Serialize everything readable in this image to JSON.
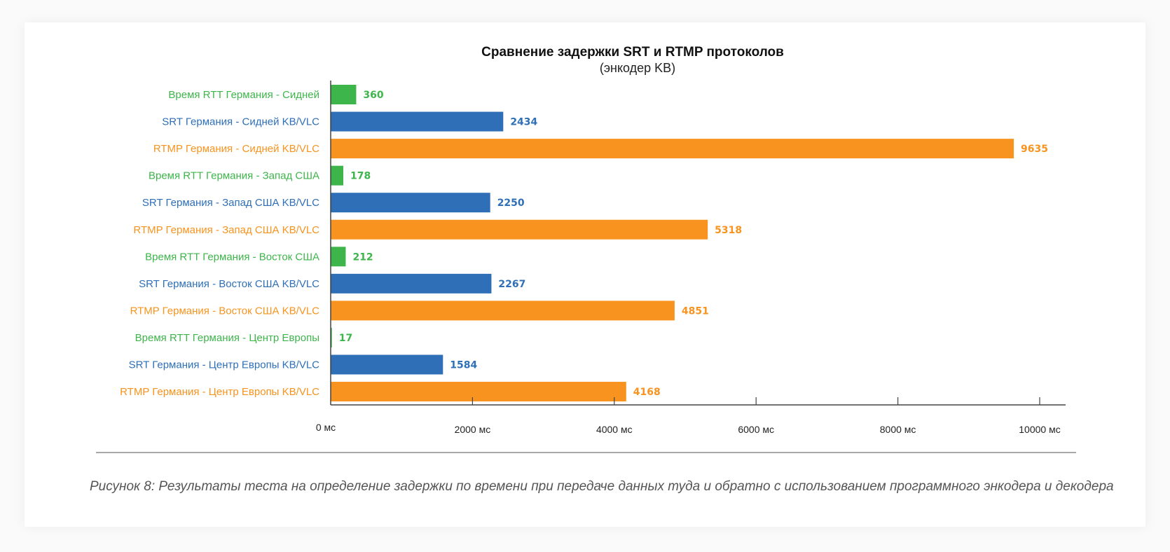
{
  "chart_data": {
    "type": "bar",
    "orientation": "horizontal",
    "title": "Сравнение задержки SRT и RTMP протоколов",
    "subtitle": "(энкодер KB)",
    "xlabel": "",
    "ylabel": "",
    "xlim": [
      0,
      10000
    ],
    "x_ticks": [
      0,
      2000,
      4000,
      6000,
      8000,
      10000
    ],
    "x_tick_labels": [
      "0 мс",
      "2000 мс",
      "4000 мс",
      "6000 мс",
      "8000 мс",
      "10000 мс"
    ],
    "grid": false,
    "legend": "none",
    "colors": {
      "rtt": "#3db54a",
      "srt": "#2e6fb7",
      "rtmp": "#f7931e"
    },
    "categories": [
      "Время RTT Германия - Сидней",
      "SRT Германия - Сидней KB/VLC",
      "RTMP Германия - Сидней KB/VLC",
      "Время RTT Германия - Запад США",
      "SRT Германия - Запад США KB/VLC",
      "RTMP Германия - Запад США KB/VLC",
      "Время RTT Германия - Восток США",
      "SRT Германия - Восток США KB/VLC",
      "RTMP Германия - Восток США KB/VLC",
      "Время RTT Германия - Центр Европы",
      "SRT Германия - Центр Европы KB/VLC",
      "RTMP Германия - Центр Европы KB/VLC"
    ],
    "values": [
      360,
      2434,
      9635,
      178,
      2250,
      5318,
      212,
      2267,
      4851,
      17,
      1584,
      4168
    ],
    "value_labels": [
      "360",
      "2434",
      "9635",
      "178",
      "2250",
      "5318",
      "212",
      "2267",
      "4851",
      "17",
      "1584",
      "4168"
    ],
    "series_kind": [
      "rtt",
      "srt",
      "rtmp",
      "rtt",
      "srt",
      "rtmp",
      "rtt",
      "srt",
      "rtmp",
      "rtt",
      "srt",
      "rtmp"
    ]
  },
  "caption": "Рисунок 8: Результаты теста на определение задержки по времени при передаче данных туда и обратно с использованием программного энкодера и декодера"
}
